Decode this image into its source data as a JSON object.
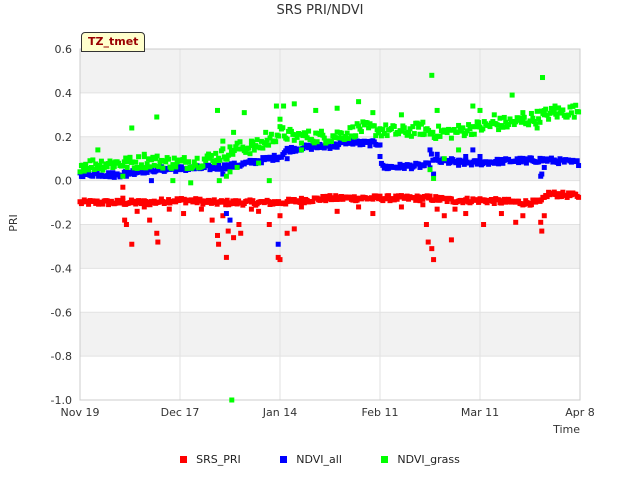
{
  "chart_data": {
    "type": "scatter",
    "title": "SRS PRI/NDVI",
    "xlabel": "Time",
    "ylabel": "PRI",
    "annotation": "TZ_tmet",
    "ylim": [
      -1.0,
      0.6
    ],
    "y_ticks": [
      "0.6",
      "0.4",
      "0.2",
      "0.0",
      "-0.2",
      "-0.4",
      "-0.6",
      "-0.8",
      "-1.0"
    ],
    "y_tick_values": [
      0.6,
      0.4,
      0.2,
      0.0,
      -0.2,
      -0.4,
      -0.6,
      -0.8,
      -1.0
    ],
    "x_range_days": [
      0,
      140
    ],
    "x_ticks": [
      "Nov 19",
      "Dec 17",
      "Jan 14",
      "Feb 11",
      "Mar 11",
      "Apr 8"
    ],
    "x_tick_days": [
      0,
      28,
      56,
      84,
      112,
      140
    ],
    "x_unit": "days since Nov 19",
    "series": [
      {
        "name": "SRS_PRI",
        "color": "#ff0000",
        "baseline": [
          [
            0,
            -0.1
          ],
          [
            10,
            -0.1
          ],
          [
            20,
            -0.1
          ],
          [
            25,
            -0.09
          ],
          [
            30,
            -0.09
          ],
          [
            38,
            -0.1
          ],
          [
            44,
            -0.1
          ],
          [
            56,
            -0.1
          ],
          [
            62,
            -0.09
          ],
          [
            70,
            -0.08
          ],
          [
            84,
            -0.08
          ],
          [
            98,
            -0.08
          ],
          [
            104,
            -0.09
          ],
          [
            112,
            -0.09
          ],
          [
            124,
            -0.1
          ],
          [
            129,
            -0.1
          ],
          [
            131,
            -0.06
          ],
          [
            140,
            -0.07
          ]
        ],
        "spread": 0.012,
        "outliers": [
          [
            12,
            -0.03
          ],
          [
            12,
            -0.08
          ],
          [
            12.5,
            -0.18
          ],
          [
            13,
            -0.2
          ],
          [
            14.5,
            -0.29
          ],
          [
            16,
            -0.14
          ],
          [
            18,
            -0.12
          ],
          [
            19.5,
            -0.18
          ],
          [
            21.5,
            -0.24
          ],
          [
            21.8,
            -0.28
          ],
          [
            25,
            -0.13
          ],
          [
            29,
            -0.15
          ],
          [
            34,
            -0.13
          ],
          [
            37,
            -0.18
          ],
          [
            38.5,
            -0.25
          ],
          [
            38.8,
            -0.29
          ],
          [
            40,
            -0.16
          ],
          [
            41.5,
            -0.23
          ],
          [
            41,
            -0.35
          ],
          [
            43,
            -0.26
          ],
          [
            44.5,
            -0.2
          ],
          [
            45,
            -0.24
          ],
          [
            48,
            -0.13
          ],
          [
            50,
            -0.14
          ],
          [
            53,
            -0.2
          ],
          [
            56,
            -0.16
          ],
          [
            55.5,
            -0.35
          ],
          [
            56,
            -0.36
          ],
          [
            58,
            -0.24
          ],
          [
            60,
            -0.22
          ],
          [
            62,
            -0.12
          ],
          [
            72,
            -0.14
          ],
          [
            78,
            -0.12
          ],
          [
            82,
            -0.15
          ],
          [
            90,
            -0.12
          ],
          [
            96,
            -0.11
          ],
          [
            97,
            -0.2
          ],
          [
            97.5,
            -0.28
          ],
          [
            98.5,
            -0.31
          ],
          [
            99,
            -0.36
          ],
          [
            100,
            -0.13
          ],
          [
            102,
            -0.16
          ],
          [
            104,
            -0.27
          ],
          [
            105,
            -0.13
          ],
          [
            108,
            -0.15
          ],
          [
            113,
            -0.2
          ],
          [
            118,
            -0.15
          ],
          [
            122,
            -0.19
          ],
          [
            124,
            -0.16
          ],
          [
            129,
            -0.19
          ],
          [
            129.3,
            -0.23
          ],
          [
            130,
            -0.16
          ]
        ]
      },
      {
        "name": "NDVI_all",
        "color": "#0000ff",
        "baseline": [
          [
            0,
            0.03
          ],
          [
            6,
            0.03
          ],
          [
            10,
            0.025
          ],
          [
            13,
            0.035
          ],
          [
            20,
            0.05
          ],
          [
            30,
            0.055
          ],
          [
            38,
            0.06
          ],
          [
            44,
            0.07
          ],
          [
            50,
            0.09
          ],
          [
            56,
            0.11
          ],
          [
            58,
            0.14
          ],
          [
            62,
            0.15
          ],
          [
            72,
            0.16
          ],
          [
            75,
            0.18
          ],
          [
            78,
            0.17
          ],
          [
            82,
            0.17
          ],
          [
            84,
            0.17
          ],
          [
            84.5,
            0.06
          ],
          [
            98,
            0.07
          ],
          [
            98.5,
            0.12
          ],
          [
            99,
            0.09
          ],
          [
            110,
            0.08
          ],
          [
            120,
            0.09
          ],
          [
            130,
            0.095
          ],
          [
            140,
            0.08
          ]
        ],
        "spread": 0.012,
        "outliers": [
          [
            13,
            0.02
          ],
          [
            20,
            0.0
          ],
          [
            28,
            0.05
          ],
          [
            40,
            0.03
          ],
          [
            41,
            -0.15
          ],
          [
            42,
            -0.18
          ],
          [
            44.5,
            0.07
          ],
          [
            48,
            0.08
          ],
          [
            55.5,
            -0.29
          ],
          [
            58,
            0.1
          ],
          [
            84,
            0.11
          ],
          [
            98,
            0.14
          ],
          [
            99,
            0.03
          ],
          [
            100,
            0.12
          ],
          [
            104,
            0.1
          ],
          [
            106,
            0.07
          ],
          [
            108,
            0.11
          ],
          [
            110,
            0.14
          ],
          [
            112,
            0.11
          ],
          [
            125,
            0.08
          ],
          [
            129,
            0.02
          ],
          [
            129.3,
            0.03
          ],
          [
            130,
            0.06
          ]
        ]
      },
      {
        "name": "NDVI_grass",
        "color": "#00ff00",
        "baseline": [
          [
            0,
            0.07
          ],
          [
            10,
            0.08
          ],
          [
            14,
            0.08
          ],
          [
            20,
            0.09
          ],
          [
            28,
            0.08
          ],
          [
            34,
            0.09
          ],
          [
            38,
            0.11
          ],
          [
            42,
            0.13
          ],
          [
            44,
            0.15
          ],
          [
            48,
            0.15
          ],
          [
            52,
            0.17
          ],
          [
            56,
            0.22
          ],
          [
            60,
            0.2
          ],
          [
            70,
            0.2
          ],
          [
            76,
            0.22
          ],
          [
            78,
            0.24
          ],
          [
            84,
            0.23
          ],
          [
            90,
            0.22
          ],
          [
            96,
            0.24
          ],
          [
            98,
            0.22
          ],
          [
            104,
            0.22
          ],
          [
            110,
            0.24
          ],
          [
            118,
            0.26
          ],
          [
            124,
            0.27
          ],
          [
            130,
            0.3
          ],
          [
            134,
            0.31
          ],
          [
            140,
            0.32
          ]
        ],
        "spread": 0.03,
        "outliers": [
          [
            1,
            0.06
          ],
          [
            5,
            0.14
          ],
          [
            12,
            0.02
          ],
          [
            14.5,
            0.24
          ],
          [
            16,
            0.06
          ],
          [
            18,
            0.12
          ],
          [
            21.5,
            0.29
          ],
          [
            26,
            0.0
          ],
          [
            31,
            -0.01
          ],
          [
            38.5,
            0.32
          ],
          [
            39,
            0.0
          ],
          [
            40,
            0.18
          ],
          [
            41,
            0.02
          ],
          [
            42,
            0.04
          ],
          [
            43,
            0.22
          ],
          [
            44,
            0.06
          ],
          [
            46,
            0.31
          ],
          [
            48,
            0.18
          ],
          [
            50,
            0.08
          ],
          [
            52,
            0.22
          ],
          [
            53,
            0.0
          ],
          [
            55,
            0.34
          ],
          [
            56,
            0.28
          ],
          [
            57,
            0.34
          ],
          [
            60,
            0.35
          ],
          [
            62,
            0.14
          ],
          [
            66,
            0.32
          ],
          [
            72,
            0.33
          ],
          [
            78,
            0.36
          ],
          [
            82,
            0.31
          ],
          [
            90,
            0.3
          ],
          [
            96,
            0.21
          ],
          [
            98,
            0.05
          ],
          [
            98.5,
            0.48
          ],
          [
            99,
            0.01
          ],
          [
            100,
            0.32
          ],
          [
            102,
            0.1
          ],
          [
            106,
            0.14
          ],
          [
            110,
            0.34
          ],
          [
            112,
            0.32
          ],
          [
            116,
            0.3
          ],
          [
            121,
            0.39
          ],
          [
            124,
            0.31
          ],
          [
            128,
            0.24
          ],
          [
            129.5,
            0.47
          ],
          [
            130,
            0.3
          ],
          [
            133,
            0.34
          ],
          [
            138,
            0.34
          ],
          [
            42.5,
            -1.0
          ]
        ]
      }
    ]
  }
}
